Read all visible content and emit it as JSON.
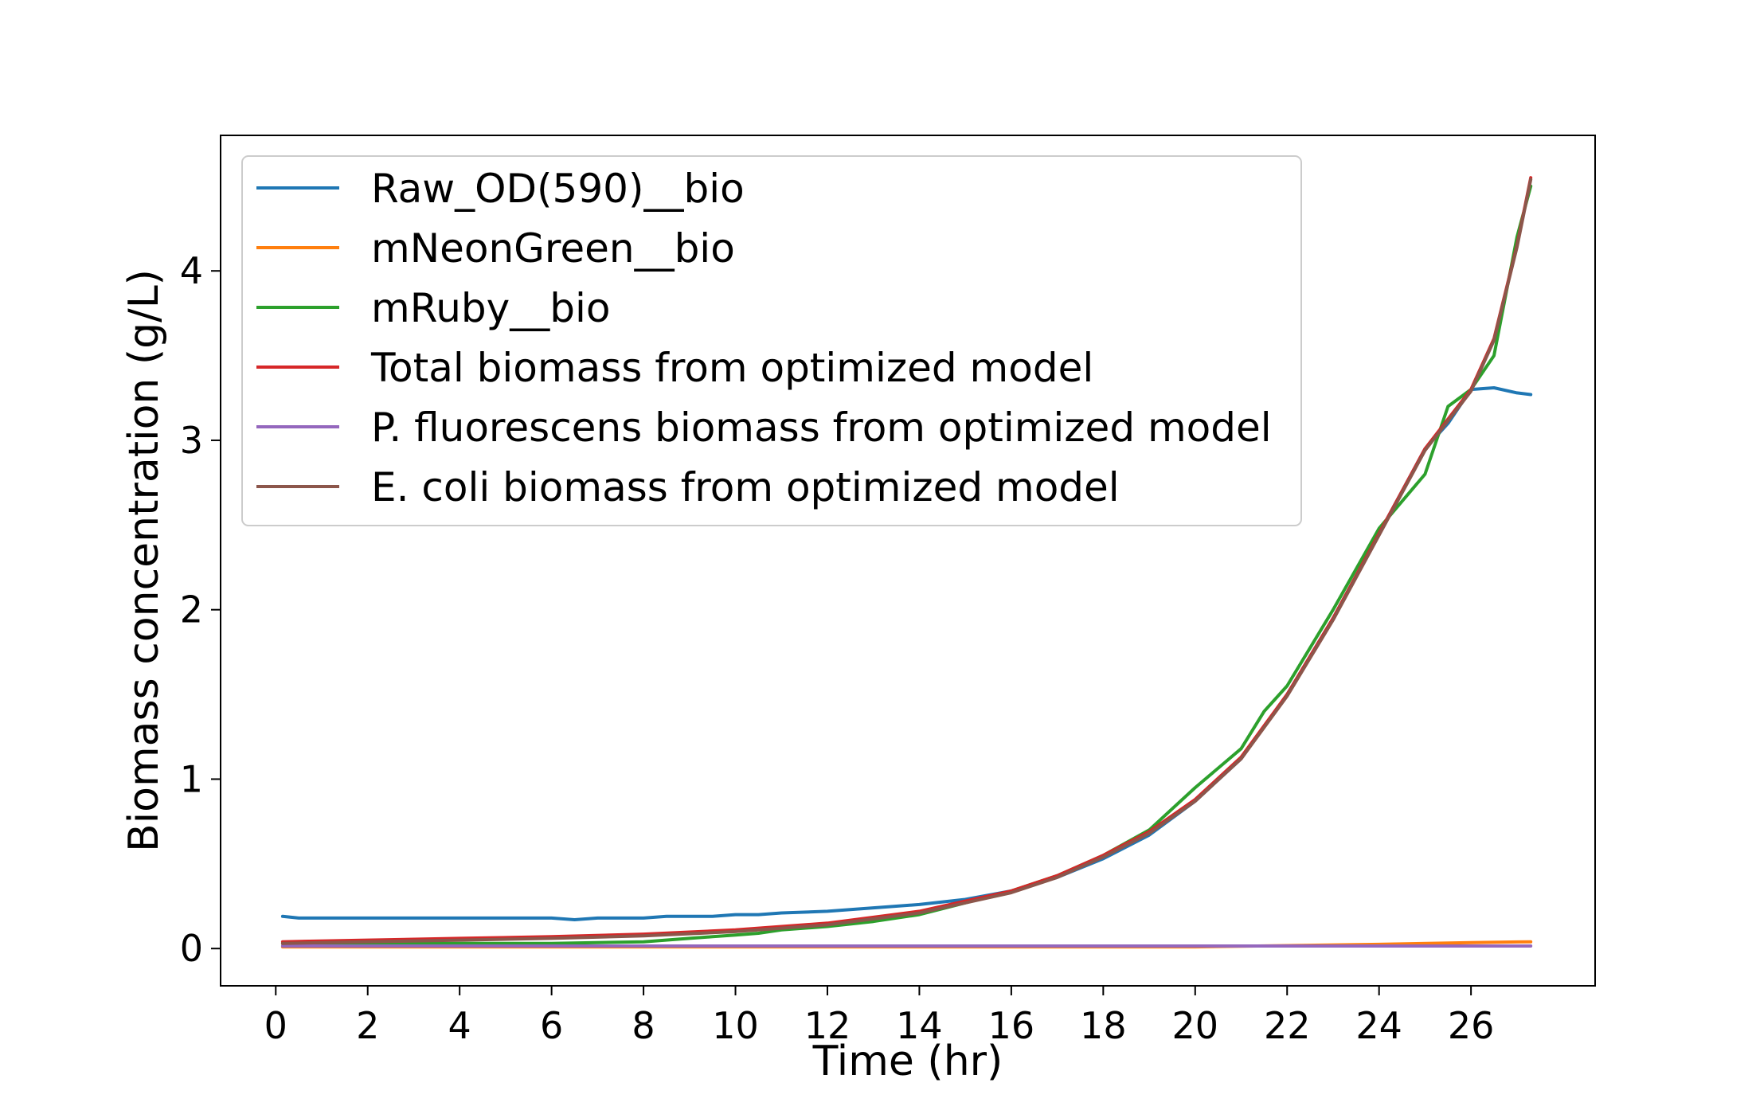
{
  "chart_data": {
    "type": "line",
    "title": "",
    "xlabel": "Time (hr)",
    "ylabel": "Biomass concentration (g/L)",
    "xlim": [
      -1.2,
      28.7
    ],
    "ylim": [
      -0.22,
      4.8
    ],
    "xticks": [
      0,
      2,
      4,
      6,
      8,
      10,
      12,
      14,
      16,
      18,
      20,
      22,
      24,
      26
    ],
    "yticks": [
      0,
      1,
      2,
      3,
      4
    ],
    "grid": false,
    "legend_position": "upper-left",
    "colors": {
      "raw_od": "#1f77b4",
      "mneongreen": "#ff7f0e",
      "mruby": "#2ca02c",
      "total": "#d62728",
      "pfluorescens": "#9467bd",
      "ecoli": "#8c564b"
    },
    "series": [
      {
        "name": "Raw_OD(590)__bio",
        "color": "#1f77b4",
        "x": [
          0.15,
          0.5,
          1,
          1.5,
          2,
          3,
          4,
          5,
          6,
          6.5,
          7,
          8,
          8.5,
          9,
          9.5,
          10,
          10.5,
          11,
          12,
          13,
          14,
          15,
          16,
          17,
          18,
          19,
          20,
          21,
          22,
          23,
          24,
          25,
          25.5,
          26,
          26.5,
          27,
          27.3
        ],
        "y": [
          0.19,
          0.18,
          0.18,
          0.18,
          0.18,
          0.18,
          0.18,
          0.18,
          0.18,
          0.17,
          0.18,
          0.18,
          0.19,
          0.19,
          0.19,
          0.2,
          0.2,
          0.21,
          0.22,
          0.24,
          0.26,
          0.29,
          0.34,
          0.42,
          0.53,
          0.67,
          0.87,
          1.12,
          1.5,
          1.95,
          2.45,
          2.95,
          3.1,
          3.3,
          3.31,
          3.28,
          3.27
        ]
      },
      {
        "name": "mNeonGreen__bio",
        "color": "#ff7f0e",
        "x": [
          0.15,
          4,
          8,
          12,
          16,
          20,
          24,
          26,
          27.3
        ],
        "y": [
          0.01,
          0.01,
          0.01,
          0.01,
          0.01,
          0.01,
          0.025,
          0.035,
          0.04
        ]
      },
      {
        "name": "mRuby__bio",
        "color": "#2ca02c",
        "x": [
          0.15,
          2,
          4,
          6,
          8,
          9,
          9.5,
          10,
          10.5,
          11,
          12,
          13,
          14,
          15,
          16,
          17,
          18,
          19,
          20,
          21,
          21.5,
          22,
          23,
          24,
          25,
          25.5,
          26,
          26.5,
          27,
          27.3
        ],
        "y": [
          0.03,
          0.03,
          0.03,
          0.03,
          0.04,
          0.06,
          0.07,
          0.08,
          0.09,
          0.11,
          0.13,
          0.16,
          0.2,
          0.27,
          0.34,
          0.43,
          0.55,
          0.7,
          0.95,
          1.18,
          1.4,
          1.55,
          2.0,
          2.48,
          2.8,
          3.2,
          3.3,
          3.5,
          4.2,
          4.5
        ]
      },
      {
        "name": "Total biomass from optimized model",
        "color": "#d62728",
        "x": [
          0.15,
          2,
          4,
          6,
          8,
          10,
          12,
          14,
          15,
          16,
          17,
          18,
          19,
          20,
          21,
          22,
          23,
          24,
          25,
          26,
          26.5,
          27,
          27.3
        ],
        "y": [
          0.04,
          0.05,
          0.06,
          0.07,
          0.085,
          0.11,
          0.15,
          0.22,
          0.28,
          0.34,
          0.43,
          0.55,
          0.69,
          0.88,
          1.13,
          1.5,
          1.95,
          2.45,
          2.95,
          3.3,
          3.6,
          4.15,
          4.55
        ]
      },
      {
        "name": "P. fluorescens biomass from optimized model",
        "color": "#9467bd",
        "x": [
          0.15,
          27.3
        ],
        "y": [
          0.015,
          0.015
        ]
      },
      {
        "name": "E. coli biomass from optimized model",
        "color": "#8c564b",
        "x": [
          0.15,
          2,
          4,
          6,
          8,
          10,
          12,
          14,
          15,
          16,
          17,
          18,
          19,
          20,
          21,
          22,
          23,
          24,
          25,
          26,
          26.5,
          27,
          27.3
        ],
        "y": [
          0.03,
          0.04,
          0.05,
          0.06,
          0.075,
          0.1,
          0.14,
          0.21,
          0.27,
          0.33,
          0.42,
          0.54,
          0.68,
          0.87,
          1.12,
          1.49,
          1.94,
          2.44,
          2.94,
          3.29,
          3.59,
          4.14,
          4.54
        ]
      }
    ]
  }
}
